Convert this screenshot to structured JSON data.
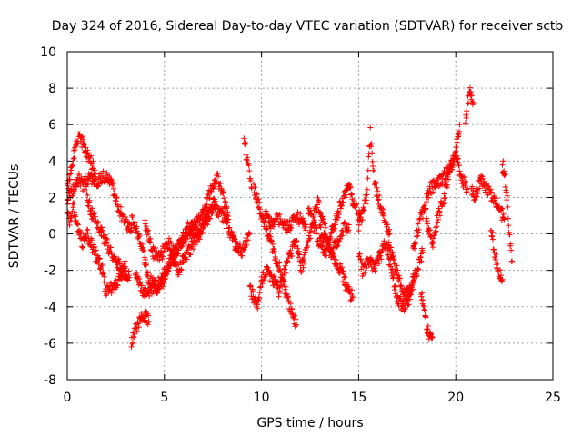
{
  "chart_data": {
    "type": "scatter",
    "title": "Day 324 of 2016, Sidereal Day-to-day VTEC variation (SDTVAR) for receiver sctb",
    "xlabel": "GPS time / hours",
    "ylabel": "SDTVAR / TECUs",
    "xlim": [
      0,
      25
    ],
    "ylim": [
      -8,
      10
    ],
    "xticks": [
      0,
      5,
      10,
      15,
      20,
      25
    ],
    "yticks": [
      -8,
      -6,
      -4,
      -2,
      0,
      2,
      4,
      6,
      8,
      10
    ],
    "grid": true,
    "marker": "+",
    "color": "#ff0000",
    "series": [
      {
        "name": "SDTVAR",
        "tracks": [
          {
            "x": [
              0.0,
              0.2,
              0.4,
              0.6,
              0.8,
              1.0,
              1.2,
              1.4
            ],
            "y": [
              2.5,
              3.5,
              4.8,
              5.3,
              5.0,
              4.5,
              4.0,
              3.5
            ]
          },
          {
            "x": [
              0.0,
              0.2,
              0.4,
              0.6,
              0.8,
              1.0,
              1.2,
              1.5,
              1.8,
              2.0,
              2.3,
              2.6,
              3.0,
              3.3
            ],
            "y": [
              2.0,
              2.2,
              2.8,
              3.0,
              2.6,
              2.9,
              3.1,
              2.9,
              3.1,
              3.2,
              2.6,
              1.5,
              0.6,
              0.2
            ]
          },
          {
            "x": [
              0.0,
              0.1,
              0.2,
              0.3,
              0.4,
              0.6,
              0.8,
              1.0,
              1.4,
              1.8,
              2.0,
              2.3,
              2.6,
              3.0
            ],
            "y": [
              1.5,
              0.7,
              0.9,
              1.8,
              1.0,
              0.2,
              -0.5,
              0.0,
              -1.0,
              -2.0,
              -3.2,
              -3.0,
              -2.5,
              -1.8
            ]
          },
          {
            "x": [
              1.0,
              1.3,
              1.6,
              2.0,
              2.4,
              2.8,
              3.0,
              3.2
            ],
            "y": [
              2.0,
              1.0,
              0.5,
              -0.5,
              -1.3,
              -2.0,
              -2.2,
              -2.4
            ]
          },
          {
            "x": [
              3.3,
              3.5,
              3.8,
              4.0,
              4.2
            ],
            "y": [
              -6.0,
              -5.2,
              -4.6,
              -4.5,
              -4.8
            ]
          },
          {
            "x": [
              3.3,
              3.6,
              3.9,
              4.2,
              4.6,
              5.0,
              5.3,
              5.6,
              5.9,
              6.2,
              6.5,
              6.8,
              7.1,
              7.4,
              7.7,
              8.0,
              8.3
            ],
            "y": [
              0.8,
              0.2,
              -1.0,
              -2.5,
              -3.0,
              -2.2,
              -1.5,
              -0.9,
              -0.3,
              0.3,
              0.5,
              0.8,
              1.5,
              2.5,
              3.1,
              2.2,
              0.8
            ]
          },
          {
            "x": [
              3.5,
              3.8,
              4.2,
              4.6,
              5.0,
              5.3,
              5.7,
              6.1,
              6.5,
              7.0,
              7.5,
              8.0,
              8.5,
              8.8
            ],
            "y": [
              -2.0,
              -3.0,
              -3.2,
              -2.8,
              -2.5,
              -1.5,
              -2.0,
              -1.2,
              -0.5,
              0.5,
              1.5,
              1.0,
              -0.2,
              -1.0
            ]
          },
          {
            "x": [
              4.0,
              4.4,
              4.8,
              5.2,
              5.6,
              6.0,
              6.4,
              6.8,
              7.2,
              7.6
            ],
            "y": [
              0.5,
              -1.0,
              -1.2,
              -0.5,
              -1.0,
              -0.2,
              0.3,
              0.0,
              0.8,
              1.8
            ]
          },
          {
            "x": [
              8.6,
              8.8,
              9.0,
              9.2,
              9.4
            ],
            "y": [
              -0.5,
              -0.7,
              -1.0,
              -0.5,
              0.0
            ]
          },
          {
            "x": [
              9.1,
              9.2,
              9.3,
              9.4,
              9.5
            ],
            "y": [
              5.5,
              4.5,
              3.7,
              3.2,
              2.5
            ]
          },
          {
            "x": [
              9.6,
              9.8,
              10.0,
              10.3,
              10.6,
              10.9,
              11.2,
              11.5,
              11.8
            ],
            "y": [
              2.5,
              1.8,
              1.0,
              0.2,
              -0.8,
              -1.8,
              -3.0,
              -4.0,
              -5.0
            ]
          },
          {
            "x": [
              9.4,
              9.6,
              9.8,
              10.0,
              10.3,
              10.6,
              10.9,
              11.2,
              11.5,
              11.8,
              12.0
            ],
            "y": [
              -3.0,
              -3.5,
              -3.8,
              -2.5,
              -2.0,
              -2.5,
              -3.2,
              -2.0,
              -1.0,
              -0.5,
              -1.5
            ]
          },
          {
            "x": [
              10.2,
              10.5,
              10.8,
              11.1,
              11.4,
              11.7,
              12.0,
              12.3
            ],
            "y": [
              1.2,
              0.5,
              1.0,
              0.5,
              0.3,
              1.0,
              0.8,
              0.5
            ]
          },
          {
            "x": [
              12.0,
              12.3,
              12.6,
              12.9,
              13.2,
              13.5,
              13.8,
              14.1,
              14.4,
              14.7
            ],
            "y": [
              -2.0,
              -1.0,
              0.5,
              1.8,
              0.5,
              -0.8,
              -1.5,
              -2.0,
              -3.0,
              -3.5
            ]
          },
          {
            "x": [
              12.4,
              12.7,
              13.0,
              13.3,
              13.6,
              13.9,
              14.2,
              14.5,
              14.8,
              15.1
            ],
            "y": [
              1.5,
              0.5,
              -0.5,
              -1.0,
              0.0,
              1.0,
              2.0,
              2.5,
              1.5,
              0.8
            ]
          },
          {
            "x": [
              13.0,
              13.3,
              13.6,
              13.9,
              14.2,
              14.5
            ],
            "y": [
              0.2,
              -0.3,
              -1.0,
              -0.5,
              0.3,
              0.5
            ]
          },
          {
            "x": [
              15.0,
              15.2,
              15.4,
              15.6,
              15.8,
              16.0,
              16.3,
              16.6
            ],
            "y": [
              0.5,
              1.0,
              2.0,
              5.5,
              3.0,
              2.0,
              1.0,
              0.0
            ]
          },
          {
            "x": [
              15.0,
              15.2,
              15.5,
              15.8,
              16.1,
              16.4,
              16.7,
              17.0,
              17.3,
              17.6,
              17.9
            ],
            "y": [
              -1.0,
              -2.0,
              -1.5,
              -1.8,
              -1.2,
              -0.5,
              -2.0,
              -3.5,
              -4.0,
              -3.5,
              -2.0
            ]
          },
          {
            "x": [
              16.5,
              16.8,
              17.1,
              17.4,
              17.7,
              18.0,
              18.3
            ],
            "y": [
              -0.5,
              -1.5,
              -2.5,
              -3.5,
              -3.0,
              -2.0,
              -1.0
            ]
          },
          {
            "x": [
              17.8,
              18.1,
              18.4,
              18.7,
              19.0,
              19.3,
              19.6,
              19.9,
              20.2
            ],
            "y": [
              -1.0,
              0.5,
              1.5,
              2.5,
              2.8,
              3.0,
              3.5,
              4.0,
              6.0
            ]
          },
          {
            "x": [
              18.2,
              18.4,
              18.6,
              18.8
            ],
            "y": [
              -3.0,
              -4.5,
              -5.5,
              -5.7
            ]
          },
          {
            "x": [
              18.5,
              18.8,
              19.1,
              19.4,
              19.7,
              20.0,
              20.3,
              20.6
            ],
            "y": [
              0.5,
              -0.5,
              1.0,
              2.0,
              3.5,
              4.5,
              3.0,
              2.5
            ]
          },
          {
            "x": [
              20.5,
              20.6,
              20.7,
              20.8,
              20.9
            ],
            "y": [
              6.0,
              7.0,
              8.0,
              7.5,
              7.2
            ]
          },
          {
            "x": [
              20.8,
              21.0,
              21.3,
              21.6,
              21.9,
              22.2,
              22.5
            ],
            "y": [
              2.5,
              2.0,
              3.0,
              2.5,
              2.0,
              1.5,
              0.8
            ]
          },
          {
            "x": [
              21.8,
              22.0,
              22.2,
              22.4
            ],
            "y": [
              0.5,
              -1.0,
              -2.0,
              -2.5
            ]
          },
          {
            "x": [
              22.4,
              22.5,
              22.6,
              22.7,
              22.8,
              22.9
            ],
            "y": [
              3.8,
              3.5,
              2.5,
              1.0,
              -0.5,
              -1.5
            ]
          }
        ]
      }
    ]
  }
}
